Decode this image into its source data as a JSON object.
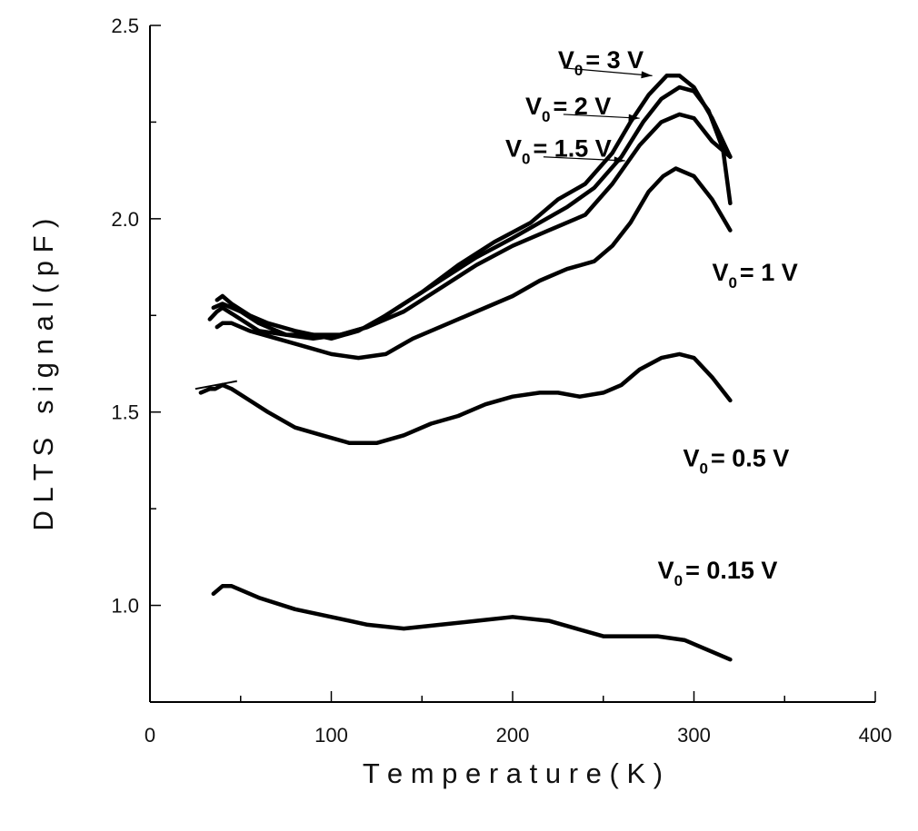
{
  "chart_data": {
    "type": "line",
    "title": "",
    "xlabel": "T e m p e r a t u r e ( K )",
    "ylabel": "D L T S   s i g n a l ( p F )",
    "xlim": [
      0,
      400
    ],
    "ylim": [
      0.75,
      2.5
    ],
    "xticks": [
      0,
      100,
      200,
      300,
      400
    ],
    "xtick_labels": [
      "0",
      "100",
      "200",
      "300",
      "400"
    ],
    "yticks": [
      1.0,
      1.5,
      2.0,
      2.5
    ],
    "ytick_labels": [
      "1.0",
      "1.5",
      "2.0",
      "2.5"
    ],
    "grid": false,
    "legend": "inline labels",
    "line_color": "#000000",
    "series": [
      {
        "name": "V0=3V",
        "label": {
          "main": "V",
          "sub": "0",
          "rest": "= 3 V"
        },
        "x": [
          37,
          40,
          45,
          55,
          65,
          80,
          100,
          115,
          130,
          150,
          170,
          190,
          210,
          225,
          240,
          255,
          265,
          275,
          285,
          292,
          300,
          310,
          320
        ],
        "y": [
          1.79,
          1.8,
          1.78,
          1.75,
          1.73,
          1.71,
          1.69,
          1.71,
          1.75,
          1.81,
          1.88,
          1.94,
          1.99,
          2.05,
          2.09,
          2.17,
          2.25,
          2.32,
          2.37,
          2.37,
          2.34,
          2.26,
          2.16
        ],
        "arrow": {
          "from_x": 228,
          "from_y": 2.39,
          "to_x": 277,
          "to_y": 2.37
        }
      },
      {
        "name": "V0=2V",
        "label": {
          "main": "V",
          "sub": "0",
          "rest": "= 2 V"
        },
        "x": [
          35,
          40,
          50,
          60,
          75,
          90,
          105,
          120,
          140,
          160,
          180,
          200,
          215,
          230,
          245,
          260,
          272,
          282,
          292,
          300,
          308,
          316,
          320
        ],
        "y": [
          1.77,
          1.78,
          1.76,
          1.73,
          1.7,
          1.69,
          1.7,
          1.72,
          1.78,
          1.84,
          1.9,
          1.95,
          1.99,
          2.03,
          2.08,
          2.16,
          2.25,
          2.31,
          2.34,
          2.33,
          2.28,
          2.18,
          2.04
        ],
        "arrow": {
          "from_x": 228,
          "from_y": 2.27,
          "to_x": 270,
          "to_y": 2.26
        }
      },
      {
        "name": "V0=1.5V",
        "label": {
          "main": "V",
          "sub": "0",
          "rest": "= 1.5 V"
        },
        "x": [
          33,
          37,
          40,
          50,
          60,
          75,
          90,
          105,
          120,
          140,
          160,
          180,
          200,
          220,
          240,
          255,
          270,
          282,
          292,
          300,
          310,
          320
        ],
        "y": [
          1.74,
          1.76,
          1.77,
          1.74,
          1.71,
          1.7,
          1.7,
          1.7,
          1.72,
          1.76,
          1.82,
          1.88,
          1.93,
          1.97,
          2.01,
          2.09,
          2.19,
          2.25,
          2.27,
          2.26,
          2.2,
          2.16
        ],
        "arrow": {
          "from_x": 217,
          "from_y": 2.16,
          "to_x": 262,
          "to_y": 2.15
        }
      },
      {
        "name": "V0=1V",
        "label": {
          "main": "V",
          "sub": "0",
          "rest": "= 1 V"
        },
        "x": [
          37,
          40,
          45,
          55,
          70,
          85,
          100,
          115,
          130,
          145,
          160,
          180,
          200,
          215,
          230,
          245,
          255,
          265,
          275,
          283,
          290,
          300,
          310,
          320
        ],
        "y": [
          1.72,
          1.73,
          1.73,
          1.71,
          1.69,
          1.67,
          1.65,
          1.64,
          1.65,
          1.69,
          1.72,
          1.76,
          1.8,
          1.84,
          1.87,
          1.89,
          1.93,
          1.99,
          2.07,
          2.11,
          2.13,
          2.11,
          2.05,
          1.97
        ]
      },
      {
        "name": "V0=0.5V",
        "label": {
          "main": "V",
          "sub": "0",
          "rest": "= 0.5 V"
        },
        "x": [
          28,
          33,
          36,
          40,
          45,
          55,
          65,
          80,
          95,
          110,
          125,
          140,
          155,
          170,
          185,
          200,
          215,
          225,
          237,
          250,
          260,
          270,
          282,
          292,
          300,
          310,
          320
        ],
        "y": [
          1.55,
          1.56,
          1.56,
          1.57,
          1.56,
          1.53,
          1.5,
          1.46,
          1.44,
          1.42,
          1.42,
          1.44,
          1.47,
          1.49,
          1.52,
          1.54,
          1.55,
          1.55,
          1.54,
          1.55,
          1.57,
          1.61,
          1.64,
          1.65,
          1.64,
          1.59,
          1.53
        ],
        "tick": {
          "from_x": 25,
          "from_y": 1.56,
          "to_x": 48,
          "to_y": 1.58
        }
      },
      {
        "name": "V0=0.15V",
        "label": {
          "main": "V",
          "sub": "0",
          "rest": "= 0.15 V"
        },
        "x": [
          35,
          40,
          45,
          60,
          80,
          100,
          120,
          140,
          160,
          180,
          200,
          220,
          235,
          250,
          265,
          280,
          295,
          310,
          320
        ],
        "y": [
          1.03,
          1.05,
          1.05,
          1.02,
          0.99,
          0.97,
          0.95,
          0.94,
          0.95,
          0.96,
          0.97,
          0.96,
          0.94,
          0.92,
          0.92,
          0.92,
          0.91,
          0.88,
          0.86
        ]
      }
    ],
    "series_label_positions": [
      {
        "x": 225,
        "y": 2.39
      },
      {
        "x": 207,
        "y": 2.27
      },
      {
        "x": 196,
        "y": 2.16
      },
      {
        "x": 310,
        "y": 1.84
      },
      {
        "x": 294,
        "y": 1.36
      },
      {
        "x": 280,
        "y": 1.07
      }
    ]
  }
}
